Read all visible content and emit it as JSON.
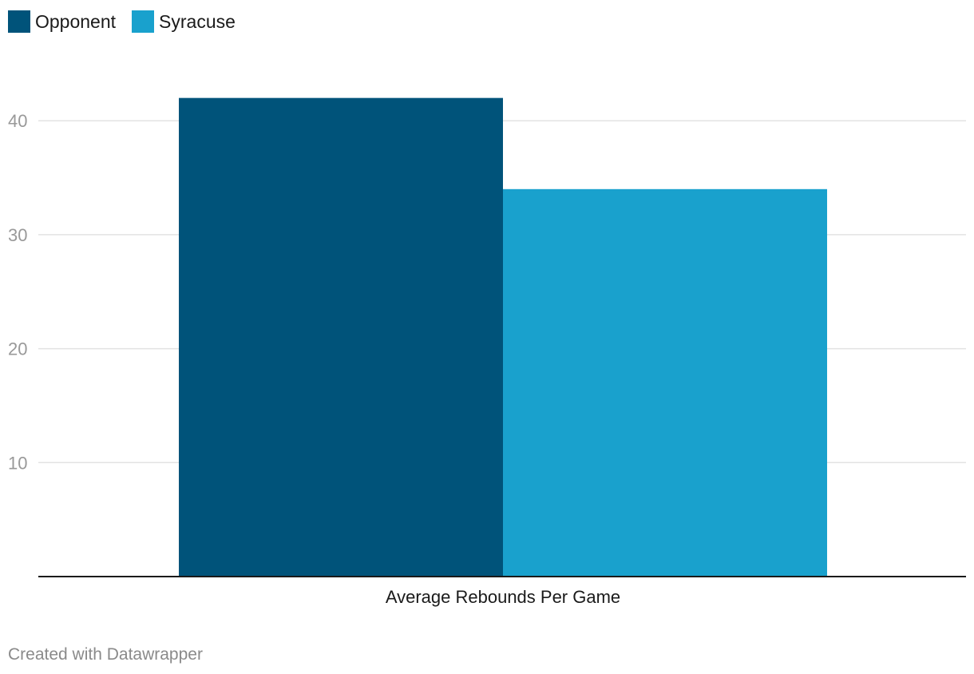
{
  "legend": {
    "items": [
      {
        "label": "Opponent",
        "color": "#00537a"
      },
      {
        "label": "Syracuse",
        "color": "#19a1cd"
      }
    ]
  },
  "credit": "Created with Datawrapper",
  "chart_data": {
    "type": "bar",
    "categories": [
      "Average Rebounds Per Game"
    ],
    "series": [
      {
        "name": "Opponent",
        "values": [
          42
        ],
        "color": "#00537a"
      },
      {
        "name": "Syracuse",
        "values": [
          34
        ],
        "color": "#19a1cd"
      }
    ],
    "title": "",
    "xlabel": "",
    "ylabel": "",
    "ylim": [
      0,
      42
    ],
    "yticks": [
      10,
      20,
      30,
      40
    ],
    "grid": true,
    "legend_position": "top-left"
  }
}
